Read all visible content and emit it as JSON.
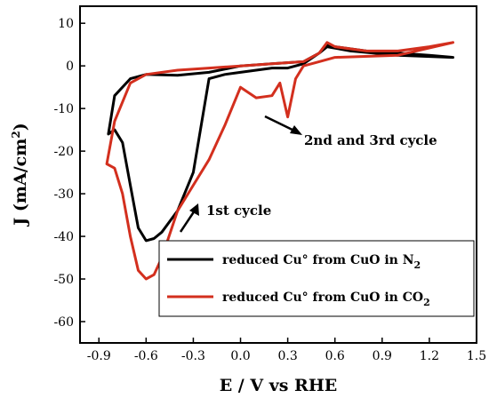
{
  "chart_data": {
    "type": "line",
    "xlabel": "E / V vs RHE",
    "ylabel": "J (mA/cm²)",
    "ylabel_main": "J (mA/cm",
    "ylabel_sup": "2",
    "ylabel_close": ")",
    "xlim": [
      -1.02,
      1.5
    ],
    "ylim": [
      -65,
      14
    ],
    "x_ticks": [
      -0.9,
      -0.6,
      -0.3,
      0.0,
      0.3,
      0.6,
      0.9,
      1.2,
      1.5
    ],
    "x_tick_labels": [
      "-0.9",
      "-0.6",
      "-0.3",
      "0.0",
      "0.3",
      "0.6",
      "0.9",
      "1.2",
      "1.5"
    ],
    "y_ticks": [
      10,
      0,
      -10,
      -20,
      -30,
      -40,
      -50,
      -60
    ],
    "y_tick_labels": [
      "10",
      "0",
      "-10",
      "-20",
      "-30",
      "-40",
      "-50",
      "-60"
    ],
    "legend_position": "bottom-right",
    "series": [
      {
        "name": "reduced Cu° from CuO in N2",
        "legend_main": "reduced Cu° from CuO in N",
        "legend_sub": "2",
        "color": "#000000",
        "x": [
          1.35,
          1.0,
          0.7,
          0.55,
          0.5,
          0.4,
          0.3,
          0.2,
          0.1,
          0.0,
          -0.1,
          -0.2,
          -0.3,
          -0.4,
          -0.5,
          -0.55,
          -0.6,
          -0.65,
          -0.7,
          -0.75,
          -0.8,
          -0.84,
          -0.8,
          -0.7,
          -0.6,
          -0.4,
          -0.2,
          0.0,
          0.2,
          0.4,
          0.5,
          0.55,
          0.6,
          0.8,
          1.0,
          1.2,
          1.35
        ],
        "y": [
          2.0,
          2.5,
          3.5,
          4.5,
          3.0,
          0.5,
          -0.5,
          -0.5,
          -1.0,
          -1.5,
          -2.0,
          -3.0,
          -25.0,
          -34.0,
          -39.0,
          -40.5,
          -41.0,
          -38.0,
          -28.0,
          -18.0,
          -15.0,
          -16.0,
          -7.0,
          -3.0,
          -2.0,
          -2.2,
          -1.5,
          0.0,
          0.5,
          1.0,
          3.0,
          5.0,
          4.5,
          3.5,
          3.0,
          2.5,
          2.0
        ]
      },
      {
        "name": "reduced Cu° from CuO in CO2",
        "legend_main": "reduced Cu° from CuO in CO",
        "legend_sub": "2",
        "color": "#d32f1e",
        "x": [
          1.35,
          1.0,
          0.6,
          0.5,
          0.45,
          0.4,
          0.35,
          0.3,
          0.25,
          0.2,
          0.1,
          0.0,
          -0.1,
          -0.2,
          -0.3,
          -0.4,
          -0.5,
          -0.55,
          -0.6,
          -0.65,
          -0.7,
          -0.75,
          -0.8,
          -0.85,
          -0.8,
          -0.7,
          -0.6,
          -0.4,
          -0.2,
          0.0,
          0.2,
          0.4,
          0.5,
          0.55,
          0.6,
          0.8,
          1.0,
          1.2,
          1.35
        ],
        "y": [
          5.5,
          2.5,
          2.0,
          1.0,
          0.5,
          0.0,
          -3.0,
          -12.0,
          -4.0,
          -7.0,
          -7.5,
          -5.0,
          -14.0,
          -22.0,
          -28.0,
          -34.0,
          -45.0,
          -49.0,
          -50.0,
          -48.0,
          -40.0,
          -30.0,
          -24.0,
          -23.0,
          -13.0,
          -4.0,
          -2.0,
          -1.0,
          -0.5,
          0.0,
          0.5,
          1.0,
          3.0,
          5.5,
          4.5,
          3.5,
          3.5,
          4.5,
          5.5
        ]
      }
    ],
    "annotations": [
      {
        "text": "2nd and 3rd cycle",
        "x": 0.57,
        "y": -19.0
      },
      {
        "text": "1st cycle",
        "x": -0.08,
        "y": -35.5
      }
    ]
  }
}
